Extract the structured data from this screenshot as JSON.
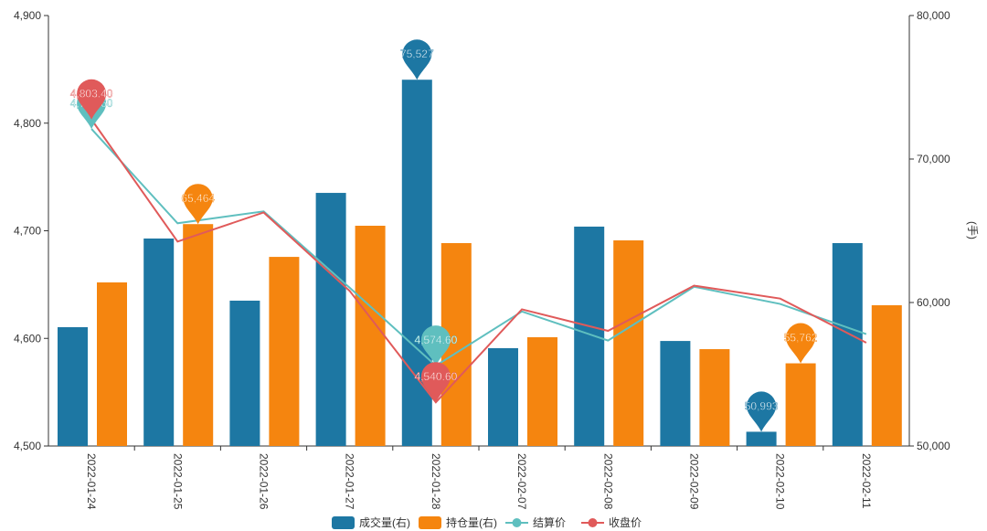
{
  "chart_data": {
    "type": "bar+line",
    "categories": [
      "2022-01-24",
      "2022-01-25",
      "2022-01-26",
      "2022-01-27",
      "2022-01-28",
      "2022-02-07",
      "2022-02-08",
      "2022-02-09",
      "2022-02-10",
      "2022-02-11"
    ],
    "left_axis": {
      "min": 4500,
      "max": 4900,
      "ticks": [
        "4,500",
        "4,600",
        "4,700",
        "4,800",
        "4,900"
      ]
    },
    "right_axis": {
      "min": 50000,
      "max": 80000,
      "ticks": [
        "50,000",
        "60,000",
        "70,000",
        "80,000"
      ],
      "label": "(手)"
    },
    "series": [
      {
        "name": "成交量(右)",
        "type": "bar",
        "axis": "right",
        "color": "#1d77a3",
        "values": [
          58280,
          64460,
          60130,
          67640,
          75527,
          56820,
          65290,
          57320,
          50993,
          64140
        ],
        "mark_max": "75,527",
        "mark_min": "50,993"
      },
      {
        "name": "持仓量(右)",
        "type": "bar",
        "axis": "right",
        "color": "#f5850f",
        "values": [
          61400,
          65464,
          63180,
          65350,
          64140,
          57580,
          64330,
          56750,
          55762,
          59810
        ],
        "mark_max": "65,464",
        "mark_min": "55,762"
      },
      {
        "name": "结算价",
        "type": "line",
        "axis": "left",
        "color": "#5fbfbf",
        "values": [
          4794.6,
          4707,
          4718,
          4647,
          4574.6,
          4625,
          4598,
          4648,
          4632,
          4604
        ],
        "mark_max": "4,794.60",
        "mark_min": "4,574.60"
      },
      {
        "name": "收盘价",
        "type": "line",
        "axis": "left",
        "color": "#e05a5a",
        "values": [
          4803.4,
          4690,
          4717,
          4644,
          4540.6,
          4627,
          4607,
          4649,
          4637,
          4596
        ],
        "mark_max": "4,803.40",
        "mark_min": "4,540.60"
      }
    ],
    "legend_position": "bottom-center"
  }
}
